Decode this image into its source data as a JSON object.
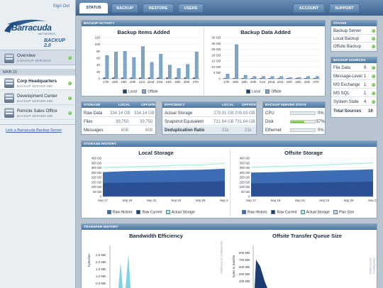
{
  "sidebar": {
    "signout": "Sign Out",
    "logo_word": "Barracuda",
    "logo_sub": "NETWORKS",
    "logo_product": "BACKUP 2.0",
    "overview_label": "Overview",
    "overview_sub": "3 BACKUP SERVERS",
    "main_header": "MAIN (3)",
    "servers": [
      {
        "name": "Corp Headquarters",
        "sub": "BACKUP SERVER 890"
      },
      {
        "name": "Development Center",
        "sub": "BACKUP SERVER 690"
      },
      {
        "name": "Remote Sales Office",
        "sub": "BACKUP SERVER 390"
      }
    ],
    "link": "Link a Barracuda Backup Server"
  },
  "tabs": {
    "status": "STATUS",
    "backup": "BACKUP",
    "restore": "RESTORE",
    "users": "USERS",
    "account": "ACCOUNT",
    "support": "SUPPORT"
  },
  "backup_activity": {
    "header": "BACKUP ACTIVITY",
    "items_title": "Backup Items Added",
    "data_title": "Backup Data Added",
    "legend_local": "Local",
    "legend_offsite": "Offsite"
  },
  "chart_data": [
    {
      "type": "bar",
      "title": "Backup Items Added",
      "categories": [
        "17th",
        "18th",
        "19th",
        "20th",
        "21st",
        "22nd",
        "23rd",
        "24th",
        "25th",
        "26th",
        "27th"
      ],
      "ylim": [
        0,
        120
      ],
      "yticks": [
        "120",
        "100",
        "80",
        "60",
        "40",
        "20",
        "0"
      ],
      "series": [
        {
          "name": "Local",
          "values": [
            3,
            3,
            3,
            3,
            3,
            3,
            3,
            3,
            3,
            3,
            3
          ]
        },
        {
          "name": "Offsite",
          "values": [
            68,
            78,
            80,
            62,
            94,
            48,
            72,
            40,
            30,
            42,
            78
          ]
        }
      ]
    },
    {
      "type": "bar",
      "title": "Backup Data Added",
      "categories": [
        "17th",
        "18th",
        "19th",
        "20th",
        "21st",
        "22nd",
        "23rd",
        "24th",
        "25th",
        "26th",
        "27th"
      ],
      "ylim": [
        0,
        35
      ],
      "yticks": [
        "35 GB",
        "30 GB",
        "25 GB",
        "20 GB",
        "15 GB",
        "10 GB",
        "5 GB",
        "0"
      ],
      "series": [
        {
          "name": "Local",
          "values": [
            0.5,
            0.5,
            0.5,
            0.5,
            0.5,
            0.5,
            0.5,
            0.5,
            0.5,
            0.5,
            0.5
          ]
        },
        {
          "name": "Offsite",
          "values": [
            4,
            29,
            3,
            2,
            2,
            2,
            2,
            1,
            1,
            2,
            2
          ]
        }
      ]
    },
    {
      "type": "area",
      "title": "Local Storage",
      "x": [
        "Sep 17",
        "Sep 19",
        "Sep 21",
        "Sep 23",
        "Sep 25",
        "Sep 27"
      ],
      "yticks": [
        "400 GB",
        "350 GB",
        "300 GB",
        "250 GB",
        "200 GB",
        "150 GB",
        "100 GB",
        "50 GB",
        "0"
      ],
      "series": [
        {
          "name": "Raw Historic",
          "values": [
            255,
            265,
            270,
            275,
            280,
            290
          ]
        },
        {
          "name": "Actual Storage",
          "values": [
            300,
            310,
            315,
            325,
            330,
            345
          ]
        }
      ]
    },
    {
      "type": "area",
      "title": "Offsite Storage",
      "x": [
        "Sep 17",
        "Sep 19",
        "Sep 21",
        "Sep 23",
        "Sep 25",
        "Sep 27"
      ],
      "yticks": [
        "400 GB",
        "350 GB",
        "300 GB",
        "250 GB",
        "200 GB",
        "150 GB",
        "100 GB",
        "50 GB",
        "0"
      ],
      "series": [
        {
          "name": "Raw Historic",
          "values": [
            250,
            255,
            262,
            270,
            276,
            284
          ]
        },
        {
          "name": "Actual Storage",
          "values": [
            305,
            315,
            320,
            330,
            340,
            352
          ]
        }
      ]
    }
  ],
  "storage": {
    "header": "STORAGE",
    "col_local": "Local",
    "col_offsite": "Offsite",
    "rows": [
      {
        "label": "Raw Data",
        "local": "334.14 GB",
        "offsite": "334.14 GB"
      },
      {
        "label": "Files",
        "local": "39,750",
        "offsite": "39,750"
      },
      {
        "label": "Messages",
        "local": "608",
        "offsite": "608"
      }
    ]
  },
  "efficiency": {
    "header": "EFFICIENCY",
    "col_local": "Local",
    "col_offsite": "Offsite",
    "rows": [
      {
        "label": "Actual Storage",
        "local": "279.91 GB",
        "offsite": "209.93 GB"
      },
      {
        "label": "Snapshot Equivalent",
        "local": "731.64 GB",
        "offsite": "731.64 GB"
      },
      {
        "label": "Deduplication Ratio",
        "local": "21x",
        "offsite": "21x"
      }
    ]
  },
  "server_stats": {
    "header": "BACKUP SERVER STATS",
    "rows": [
      {
        "label": "CPU",
        "value": "0%",
        "fill": 0
      },
      {
        "label": "Disk",
        "value": "57%",
        "fill": 57
      },
      {
        "label": "Ethernet",
        "value": "0%",
        "fill": 0
      }
    ]
  },
  "status": {
    "header": "STATUS",
    "items": [
      "Backup Server",
      "Local Backup",
      "Offsite Backup"
    ]
  },
  "sources": {
    "header": "BACKUP SOURCES",
    "items": [
      {
        "label": "File Data",
        "count": "9"
      },
      {
        "label": "Message-Level",
        "count": "1"
      },
      {
        "label": "MS Exchange",
        "count": "1"
      },
      {
        "label": "MS SQL",
        "count": "1"
      },
      {
        "label": "System State",
        "count": "4"
      }
    ],
    "total_label": "Total Sources",
    "total": "16"
  },
  "storage_history": {
    "header": "STORAGE HISTORY",
    "local_title": "Local Storage",
    "offsite_title": "Offsite Storage",
    "legend": [
      "Raw Historic",
      "Raw Current",
      "Actual Storage",
      "Plan Size"
    ]
  },
  "transfer_history": {
    "header": "TRANSFER HISTORY",
    "bw_title": "Bandwidth Efficiency",
    "queue_title": "Offsite Transfer Queue Size",
    "bw_ylabel": "bytes/sec",
    "queue_ylabel": "bytes to transfer",
    "bw_yticks": [
      "2.5 MB",
      "2.0 MB",
      "1.5 MB",
      "1.0 MB",
      "0.5 MB"
    ],
    "queue_yticks": [
      "800 MB",
      "700 MB",
      "600 MB",
      "500 MB",
      "400 MB"
    ],
    "side_label": "PREVIOUS  FORWARD"
  },
  "colors": {
    "accent": "#4b769f",
    "header_blue": "#1e3b72",
    "ok": "#3b9a22"
  }
}
